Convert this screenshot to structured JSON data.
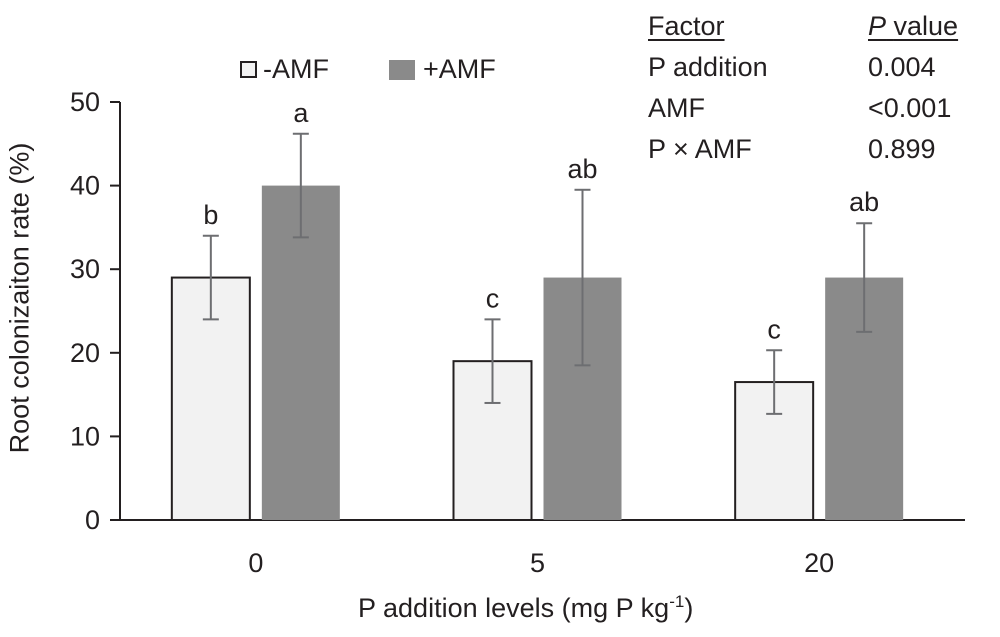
{
  "chart_data": {
    "type": "bar",
    "categories": [
      "0",
      "5",
      "20"
    ],
    "series": [
      {
        "name": "-AMF",
        "color": "#f2f2f2",
        "values": [
          29,
          19,
          16.5
        ],
        "errors": [
          5,
          5,
          3.8
        ],
        "letters": [
          "b",
          "c",
          "c"
        ]
      },
      {
        "name": "+AMF",
        "color": "#8a8a8a",
        "values": [
          40,
          29,
          29
        ],
        "errors": [
          6.2,
          10.5,
          6.5
        ],
        "letters": [
          "a",
          "ab",
          "ab"
        ]
      }
    ],
    "ylabel": "Root colonizaiton rate (%)",
    "xlabel": "P addition levels (mg P kg",
    "xlabel_sup": "-1",
    "xlabel_end": ")",
    "ylim": [
      0,
      50
    ],
    "yticks": [
      "0",
      "10",
      "20",
      "30",
      "40",
      "50"
    ],
    "grid": false,
    "legend_position": "top-left"
  },
  "stats_table": {
    "headers": [
      "Factor",
      "P",
      "value"
    ],
    "rows": [
      {
        "factor": "P addition",
        "p": "0.004"
      },
      {
        "factor": "AMF",
        "p": "<0.001"
      },
      {
        "factor": "P × AMF",
        "p": "0.899"
      }
    ]
  }
}
